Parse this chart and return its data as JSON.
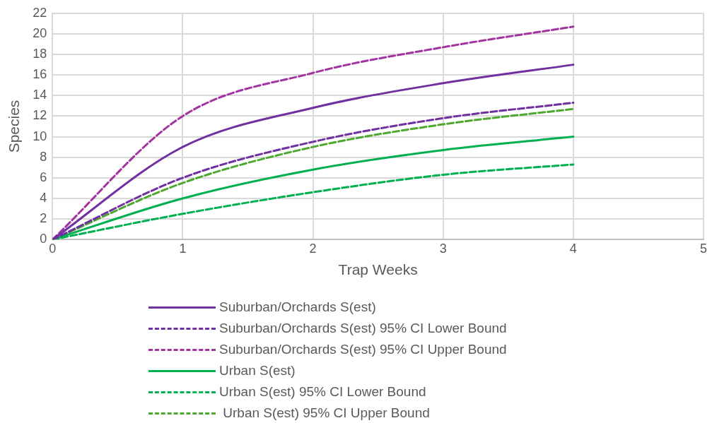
{
  "chart_data": {
    "type": "line",
    "xlabel": "Trap Weeks",
    "ylabel": "Species",
    "x": [
      0,
      1,
      2,
      3,
      4
    ],
    "series": [
      {
        "name": "Suburban/Orchards S(est)",
        "color": "#7030a0",
        "line_style": "solid",
        "values": [
          0,
          9,
          12.8,
          15.2,
          17
        ]
      },
      {
        "name": "Suburban/Orchards S(est) 95% CI Lower Bound",
        "color": "#7030a0",
        "line_style": "dashed",
        "values": [
          0,
          6,
          9.5,
          11.8,
          13.3
        ]
      },
      {
        "name": "Suburban/Orchards S(est) 95% CI Upper Bound",
        "color": "#a3339f",
        "line_style": "dashed",
        "values": [
          0,
          12,
          16.2,
          18.7,
          20.7
        ]
      },
      {
        "name": "Urban S(est)",
        "color": "#00b050",
        "line_style": "solid",
        "values": [
          0,
          4,
          6.8,
          8.7,
          10
        ]
      },
      {
        "name": "Urban S(est) 95% CI Lower Bound",
        "color": "#00b050",
        "line_style": "dashed",
        "values": [
          0,
          2.5,
          4.6,
          6.3,
          7.3
        ]
      },
      {
        "name": " Urban S(est) 95% CI Upper Bound",
        "color": "#4ea72e",
        "line_style": "dashed",
        "values": [
          0,
          5.5,
          9,
          11.2,
          12.7
        ]
      }
    ],
    "xlim": [
      0,
      5
    ],
    "xticks": [
      0,
      1,
      2,
      3,
      4,
      5
    ],
    "ylim": [
      0,
      22
    ],
    "yticks": [
      0,
      2,
      4,
      6,
      8,
      10,
      12,
      14,
      16,
      18,
      20,
      22
    ],
    "grid": true,
    "marker": "none",
    "legend": "bottom"
  }
}
